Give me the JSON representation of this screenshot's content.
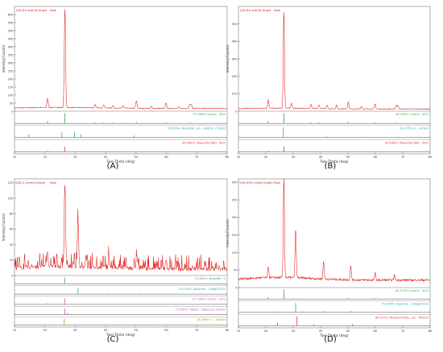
{
  "chart_data": [
    {
      "type": "line",
      "panel_label": "(A)",
      "header": "[XA-83.xrdml] Angle",
      "header_tag": "Raw",
      "xlabel": "Two-Theta (deg)",
      "ylabel": "Intensity(Counts)",
      "xlim": [
        10,
        80
      ],
      "ylim": [
        0,
        650
      ],
      "xticks": [
        10,
        20,
        30,
        40,
        50,
        60,
        70,
        80
      ],
      "yticks": [
        0,
        50,
        100,
        150,
        200,
        250,
        300,
        350,
        400,
        450,
        500,
        550,
        600
      ],
      "baseline": 20,
      "peaks": [
        [
          20.9,
          55
        ],
        [
          26.6,
          620
        ],
        [
          36.5,
          22
        ],
        [
          39.4,
          20
        ],
        [
          42.4,
          18
        ],
        [
          45.8,
          16
        ],
        [
          50.1,
          45
        ],
        [
          55.0,
          14
        ],
        [
          59.9,
          35
        ],
        [
          64.0,
          10
        ],
        [
          67.7,
          25
        ],
        [
          68.2,
          22
        ]
      ],
      "phases": [
        {
          "name": "79-1906> Quartz - SiO2",
          "color": "#3aa84a",
          "lines": [
            [
              20.9,
              0.25
            ],
            [
              26.6,
              1.0
            ],
            [
              36.5,
              0.1
            ],
            [
              39.4,
              0.1
            ],
            [
              42.4,
              0.08
            ],
            [
              45.8,
              0.06
            ],
            [
              50.1,
              0.15
            ],
            [
              59.9,
              0.1
            ],
            [
              67.7,
              0.08
            ]
          ]
        },
        {
          "name": "78-0224> Bassinite, syn - CaSO4 · 0.5H2O",
          "color": "#2aa6a6",
          "lines": [
            [
              14.7,
              0.3
            ],
            [
              25.6,
              0.5
            ],
            [
              29.7,
              0.6
            ],
            [
              31.9,
              0.3
            ],
            [
              49.4,
              0.2
            ]
          ]
        },
        {
          "name": "89-0483> Maganite [NR] - SiO2",
          "color": "#d33",
          "lines": [
            [
              26.6,
              0.5
            ],
            [
              21.0,
              0.1
            ],
            [
              50.1,
              0.05
            ]
          ]
        }
      ]
    },
    {
      "type": "line",
      "panel_label": "(B)",
      "header": "[XA-84.xrdml] Angle",
      "header_tag": "Raw",
      "xlabel": "Two-Theta (deg)",
      "ylabel": "Intensity(Counts)",
      "xlim": [
        10,
        80
      ],
      "ylim": [
        0,
        600
      ],
      "xticks": [
        10,
        20,
        30,
        40,
        50,
        60,
        70,
        80
      ],
      "yticks": [
        0,
        100,
        200,
        300,
        400,
        500
      ],
      "baseline": 15,
      "peaks": [
        [
          20.9,
          50
        ],
        [
          26.6,
          560
        ],
        [
          29.4,
          30
        ],
        [
          36.5,
          25
        ],
        [
          39.4,
          22
        ],
        [
          42.4,
          20
        ],
        [
          45.8,
          20
        ],
        [
          50.1,
          40
        ],
        [
          54.9,
          15
        ],
        [
          59.9,
          30
        ],
        [
          67.7,
          22
        ],
        [
          68.3,
          18
        ]
      ],
      "phases": [
        {
          "name": "46-1045> Quartz - SiO2",
          "color": "#3aa84a",
          "lines": [
            [
              20.9,
              0.25
            ],
            [
              26.6,
              1.0
            ],
            [
              36.5,
              0.1
            ],
            [
              39.4,
              0.1
            ],
            [
              50.1,
              0.15
            ],
            [
              59.9,
              0.1
            ],
            [
              67.7,
              0.08
            ]
          ]
        },
        {
          "name": "29-0779> C - Carbon",
          "color": "#2aa6a6",
          "lines": [
            [
              26.4,
              1.0
            ],
            [
              42.3,
              0.1
            ],
            [
              54.6,
              0.06
            ]
          ]
        },
        {
          "name": "89-0483> Maganite [NR] - SiO2",
          "color": "#d33",
          "lines": [
            [
              26.6,
              0.5
            ],
            [
              21.0,
              0.1
            ],
            [
              50.1,
              0.05
            ]
          ]
        }
      ]
    },
    {
      "type": "line",
      "panel_label": "(C)",
      "header": "[XA-1.xrdml] Angle",
      "header_tag": "Raw",
      "xlabel": "Two-Theta (deg)",
      "ylabel": "Intensity(Counts)",
      "xlim": [
        10,
        80
      ],
      "ylim": [
        0,
        125
      ],
      "xticks": [
        10,
        20,
        30,
        40,
        50,
        60,
        70,
        80
      ],
      "yticks": [
        0,
        20,
        40,
        60,
        80,
        100,
        120
      ],
      "baseline": 10,
      "peaks": [
        [
          26.6,
          110
        ],
        [
          30.9,
          60
        ],
        [
          20.8,
          20
        ],
        [
          33.5,
          15
        ],
        [
          41.1,
          15
        ],
        [
          50.3,
          12
        ],
        [
          59.9,
          10
        ]
      ],
      "phases": [
        {
          "name": "75-1621> Graphite - C",
          "color": "#3aa84a",
          "lines": [
            [
              26.5,
              1.0
            ],
            [
              44.5,
              0.1
            ],
            [
              54.7,
              0.1
            ]
          ]
        },
        {
          "name": "75-1759> Dolomite - CaMg(CO3)2",
          "color": "#2aa6a6",
          "lines": [
            [
              30.9,
              1.0
            ],
            [
              24.1,
              0.1
            ],
            [
              33.5,
              0.1
            ],
            [
              41.1,
              0.15
            ],
            [
              51.0,
              0.15
            ]
          ]
        },
        {
          "name": "87-2096> Quartz - SiO2",
          "color": "#b96ab9",
          "lines": [
            [
              26.6,
              1.0
            ],
            [
              20.9,
              0.2
            ],
            [
              50.1,
              0.1
            ],
            [
              59.9,
              0.08
            ]
          ]
        },
        {
          "name": "73-1643> KAlSi3 - Potassium Alumin",
          "color": "#cc4fcc",
          "lines": [
            [
              26.6,
              1.0
            ],
            [
              27.5,
              0.3
            ]
          ]
        },
        {
          "name": "26-1080> C - Carbon",
          "color": "#9a9a22",
          "lines": [
            [
              26.4,
              1.0
            ],
            [
              42.3,
              0.1
            ],
            [
              54.6,
              0.06
            ]
          ]
        }
      ]
    },
    {
      "type": "line",
      "panel_label": "(D)",
      "header": "[XA-905.xrdml] Angle",
      "header_tag": "Raw",
      "xlabel": "Two-Theta (deg)",
      "ylabel": "Intensity(Counts)",
      "xlim": [
        10,
        80
      ],
      "ylim": [
        0,
        310
      ],
      "xticks": [
        10,
        20,
        30,
        40,
        50,
        60,
        70,
        80
      ],
      "yticks": [
        0,
        50,
        100,
        150,
        200,
        250,
        300
      ],
      "baseline": 25,
      "peaks": [
        [
          26.6,
          290
        ],
        [
          30.9,
          140
        ],
        [
          20.9,
          30
        ],
        [
          41.1,
          50
        ],
        [
          51.0,
          40
        ],
        [
          59.9,
          20
        ],
        [
          67.0,
          15
        ]
      ],
      "phases": [
        {
          "name": "85-0795> Quartz - SiO2",
          "color": "#3aa84a",
          "lines": [
            [
              26.6,
              1.0
            ],
            [
              20.9,
              0.2
            ],
            [
              50.1,
              0.1
            ],
            [
              59.9,
              0.08
            ]
          ]
        },
        {
          "name": "75-1655> Dolomite - CaMg(CO3)2",
          "color": "#2aa6a6",
          "lines": [
            [
              30.9,
              1.0
            ],
            [
              24.1,
              0.1
            ],
            [
              33.5,
              0.1
            ],
            [
              41.1,
              0.15
            ],
            [
              51.0,
              0.15
            ]
          ]
        },
        {
          "name": "84-1472> Rhodochrosite, syn - MnCO3",
          "color": "#d33",
          "lines": [
            [
              31.4,
              1.0
            ],
            [
              24.3,
              0.3
            ],
            [
              37.5,
              0.15
            ],
            [
              51.7,
              0.2
            ]
          ]
        }
      ]
    }
  ]
}
